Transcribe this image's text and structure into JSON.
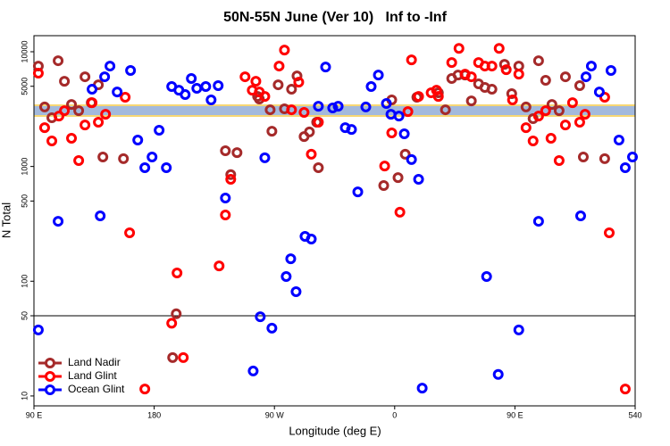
{
  "chart_data": {
    "type": "scatter",
    "title": "50N-55N June (Ver 10)   Inf to -Inf",
    "xlabel": "Longitude (deg E)",
    "ylabel": "N Total",
    "log_y": true,
    "xlim": [
      90,
      540
    ],
    "ylim": [
      8.2,
      13800
    ],
    "xticks": [
      {
        "value": 90,
        "label": "90 E"
      },
      180,
      {
        "value": 270,
        "label": "90 W"
      },
      {
        "value": 360,
        "label": "0"
      },
      {
        "value": 450,
        "label": "90 E"
      },
      540
    ],
    "yticks": [
      10,
      50,
      100,
      500,
      1000,
      5000,
      10000
    ],
    "hline": 50,
    "legend": "lower left",
    "series": [
      {
        "name": "Land Nadir",
        "color": "#a52a2a",
        "x": [
          93.3,
          98.0,
          103.4,
          108.1,
          112.8,
          118.1,
          123.5,
          128.2,
          132.9,
          138.2,
          141.6,
          157.0,
          196.5,
          193.8,
          233.3,
          237.3,
          242.0,
          257.4,
          258.7,
          266.8,
          268.1,
          272.8,
          277.5,
          282.8,
          286.9,
          292.2,
          296.2,
          301.6,
          302.9,
          351.8,
          357.8,
          362.5,
          367.9,
          376.6,
          392.7,
          398.0,
          402.7,
          407.4,
          412.7,
          417.4,
          422.8,
          427.5,
          432.8,
          442.2,
          447.6,
          452.9,
          458.3,
          463.6,
          467.7,
          473.0,
          477.7,
          483.1,
          487.8,
          498.5,
          501.2,
          517.2
        ],
        "values": [
          7500,
          3300,
          2660,
          8350,
          5530,
          3470,
          3060,
          6050,
          3600,
          5150,
          1210,
          1170,
          52,
          21.6,
          1370,
          850,
          1320,
          4080,
          3870,
          3120,
          2030,
          5150,
          3180,
          4710,
          6150,
          1820,
          2000,
          2430,
          975,
          682,
          3800,
          800,
          1280,
          4010,
          4390,
          3120,
          5840,
          6270,
          6270,
          3730,
          5250,
          4890,
          4710,
          7770,
          4310,
          7500,
          3300,
          2610,
          8350,
          5640,
          3470,
          3060,
          6050,
          5060,
          1210,
          1170
        ]
      },
      {
        "name": "Land Glint",
        "color": "#ff0000",
        "x": [
          93.3,
          98.0,
          103.4,
          108.7,
          112.8,
          118.1,
          123.5,
          128.2,
          133.5,
          138.2,
          143.6,
          158.3,
          161.6,
          193.1,
          197.1,
          201.8,
          173.0,
          228.6,
          233.3,
          237.3,
          248.0,
          253.4,
          256.1,
          258.7,
          262.8,
          273.5,
          277.5,
          282.8,
          288.2,
          292.2,
          297.6,
          302.9,
          352.5,
          357.8,
          363.9,
          369.9,
          372.6,
          377.9,
          387.3,
          391.3,
          392.7,
          402.7,
          408.1,
          412.7,
          417.4,
          422.8,
          427.5,
          432.8,
          438.2,
          443.5,
          448.2,
          452.9,
          458.3,
          463.6,
          467.7,
          473.0,
          477.0,
          483.1,
          487.8,
          493.1,
          498.5,
          502.5,
          517.2,
          520.6,
          532.6
        ],
        "values": [
          6500,
          2180,
          1670,
          2750,
          3060,
          1760,
          1125,
          2300,
          3600,
          2430,
          2850,
          4010,
          264,
          43,
          118,
          21.6,
          11.5,
          136,
          378,
          773,
          6050,
          4620,
          5530,
          4460,
          4080,
          7500,
          10350,
          3120,
          5430,
          2960,
          1280,
          2430,
          1010,
          1960,
          400,
          3010,
          8500,
          4080,
          4390,
          4620,
          4080,
          8050,
          10700,
          6380,
          6050,
          8050,
          7500,
          7500,
          10700,
          6980,
          3800,
          6380,
          2180,
          1670,
          2750,
          3060,
          1760,
          1125,
          2300,
          3600,
          2430,
          2850,
          4010,
          264,
          11.5
        ]
      },
      {
        "name": "Ocean Glint",
        "color": "#0000ff",
        "x": [
          93.3,
          108.1,
          133.5,
          139.6,
          142.9,
          146.9,
          152.3,
          162.3,
          167.7,
          173.0,
          178.4,
          183.7,
          189.1,
          193.1,
          198.5,
          203.2,
          207.8,
          211.9,
          218.6,
          222.6,
          227.9,
          233.3,
          254.1,
          259.4,
          262.8,
          268.1,
          278.8,
          282.2,
          286.2,
          292.9,
          297.6,
          302.9,
          308.3,
          313.6,
          317.7,
          323.0,
          327.7,
          332.4,
          338.4,
          342.4,
          347.8,
          353.8,
          357.2,
          363.2,
          367.2,
          372.6,
          377.9,
          380.6,
          428.8,
          437.5,
          452.9,
          467.7,
          499.2,
          503.2,
          507.2,
          513.2,
          521.9,
          527.9,
          532.6,
          538.0
        ],
        "values": [
          37.6,
          333,
          4710,
          371,
          6050,
          7500,
          4460,
          6860,
          1700,
          975,
          1210,
          2070,
          975,
          4970,
          4620,
          4230,
          5840,
          4800,
          4970,
          3800,
          5060,
          531,
          16.5,
          49,
          1190,
          39,
          110,
          157,
          81,
          246,
          233,
          3350,
          7360,
          3240,
          3350,
          2180,
          2100,
          600,
          3300,
          4970,
          6270,
          3540,
          2850,
          2750,
          1925,
          1150,
          773,
          11.7,
          110,
          15.4,
          37.6,
          333,
          371,
          6050,
          7500,
          4460,
          6860,
          1700,
          975,
          1210
        ]
      }
    ]
  }
}
